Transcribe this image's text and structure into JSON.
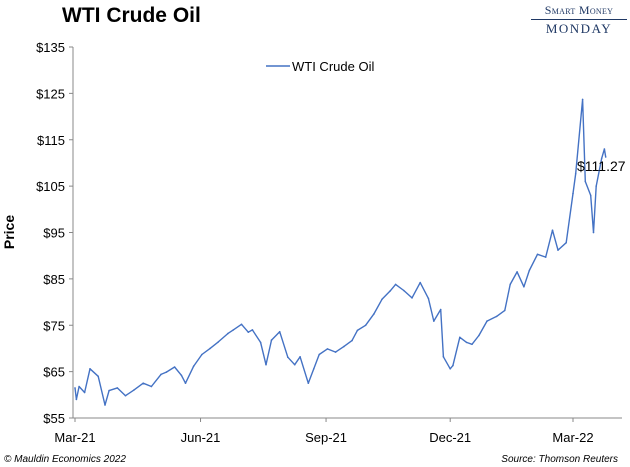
{
  "header": {
    "title": "WTI Crude Oil",
    "brand_line1": "Smart Money",
    "brand_line2": "MONDAY"
  },
  "footer": {
    "copyright": "© Mauldin Economics 2022",
    "source": "Source: Thomson Reuters"
  },
  "colors": {
    "line": "#4472c4",
    "brand": "#1f3864"
  },
  "chart_data": {
    "type": "line",
    "title": "WTI Crude Oil",
    "ylabel": "Price",
    "xlabel": "",
    "ylim": [
      55,
      135
    ],
    "y_ticks": [
      "$55",
      "$65",
      "$75",
      "$85",
      "$95",
      "$105",
      "$115",
      "$125",
      "$135"
    ],
    "y_tick_values": [
      55,
      65,
      75,
      85,
      95,
      105,
      115,
      125,
      135
    ],
    "x_ticks": [
      "Mar-21",
      "Jun-21",
      "Sep-21",
      "Dec-21",
      "Mar-22"
    ],
    "x_tick_values": [
      "2021-03-01",
      "2021-06-01",
      "2021-09-01",
      "2021-12-01",
      "2022-03-01"
    ],
    "grid": false,
    "legend": "top-center",
    "annotation": "$111.27",
    "series": [
      {
        "name": "WTI Crude Oil",
        "x": [
          "2021-03-01",
          "2021-03-02",
          "2021-03-04",
          "2021-03-08",
          "2021-03-12",
          "2021-03-18",
          "2021-03-23",
          "2021-03-26",
          "2021-04-01",
          "2021-04-07",
          "2021-04-13",
          "2021-04-20",
          "2021-04-26",
          "2021-05-03",
          "2021-05-07",
          "2021-05-13",
          "2021-05-18",
          "2021-05-21",
          "2021-05-27",
          "2021-06-02",
          "2021-06-08",
          "2021-06-14",
          "2021-06-21",
          "2021-06-25",
          "2021-07-01",
          "2021-07-06",
          "2021-07-09",
          "2021-07-15",
          "2021-07-19",
          "2021-07-23",
          "2021-07-29",
          "2021-08-04",
          "2021-08-09",
          "2021-08-13",
          "2021-08-19",
          "2021-08-23",
          "2021-08-27",
          "2021-09-02",
          "2021-09-08",
          "2021-09-14",
          "2021-09-20",
          "2021-09-24",
          "2021-09-30",
          "2021-10-06",
          "2021-10-12",
          "2021-10-18",
          "2021-10-22",
          "2021-10-28",
          "2021-11-03",
          "2021-11-09",
          "2021-11-15",
          "2021-11-19",
          "2021-11-24",
          "2021-11-26",
          "2021-12-01",
          "2021-12-03",
          "2021-12-08",
          "2021-12-13",
          "2021-12-17",
          "2021-12-22",
          "2021-12-28",
          "2022-01-04",
          "2022-01-10",
          "2022-01-14",
          "2022-01-19",
          "2022-01-24",
          "2022-01-28",
          "2022-02-03",
          "2022-02-09",
          "2022-02-14",
          "2022-02-18",
          "2022-02-24",
          "2022-03-01",
          "2022-03-03",
          "2022-03-08",
          "2022-03-10",
          "2022-03-14",
          "2022-03-16",
          "2022-03-18",
          "2022-03-22",
          "2022-03-24",
          "2022-03-25"
        ],
        "y": [
          61.5,
          59.0,
          61.8,
          60.5,
          65.6,
          64.0,
          57.8,
          60.9,
          61.5,
          59.8,
          61.0,
          62.5,
          61.8,
          64.4,
          64.9,
          66.0,
          64.2,
          62.5,
          66.2,
          68.7,
          70.0,
          71.4,
          73.2,
          74.0,
          75.2,
          73.5,
          74.0,
          71.3,
          66.5,
          71.8,
          73.6,
          68.1,
          66.5,
          68.2,
          62.5,
          65.6,
          68.7,
          69.9,
          69.2,
          70.4,
          71.7,
          73.9,
          75.0,
          77.4,
          80.6,
          82.4,
          83.8,
          82.5,
          80.9,
          84.2,
          80.8,
          75.9,
          78.4,
          68.2,
          65.6,
          66.3,
          72.4,
          71.3,
          70.9,
          72.8,
          75.9,
          76.9,
          78.2,
          83.8,
          86.5,
          83.3,
          86.8,
          90.3,
          89.7,
          95.5,
          91.2,
          92.8,
          103.4,
          107.7,
          123.7,
          106.0,
          103.0,
          95.0,
          105.0,
          111.0,
          113.0,
          111.27
        ]
      }
    ]
  }
}
